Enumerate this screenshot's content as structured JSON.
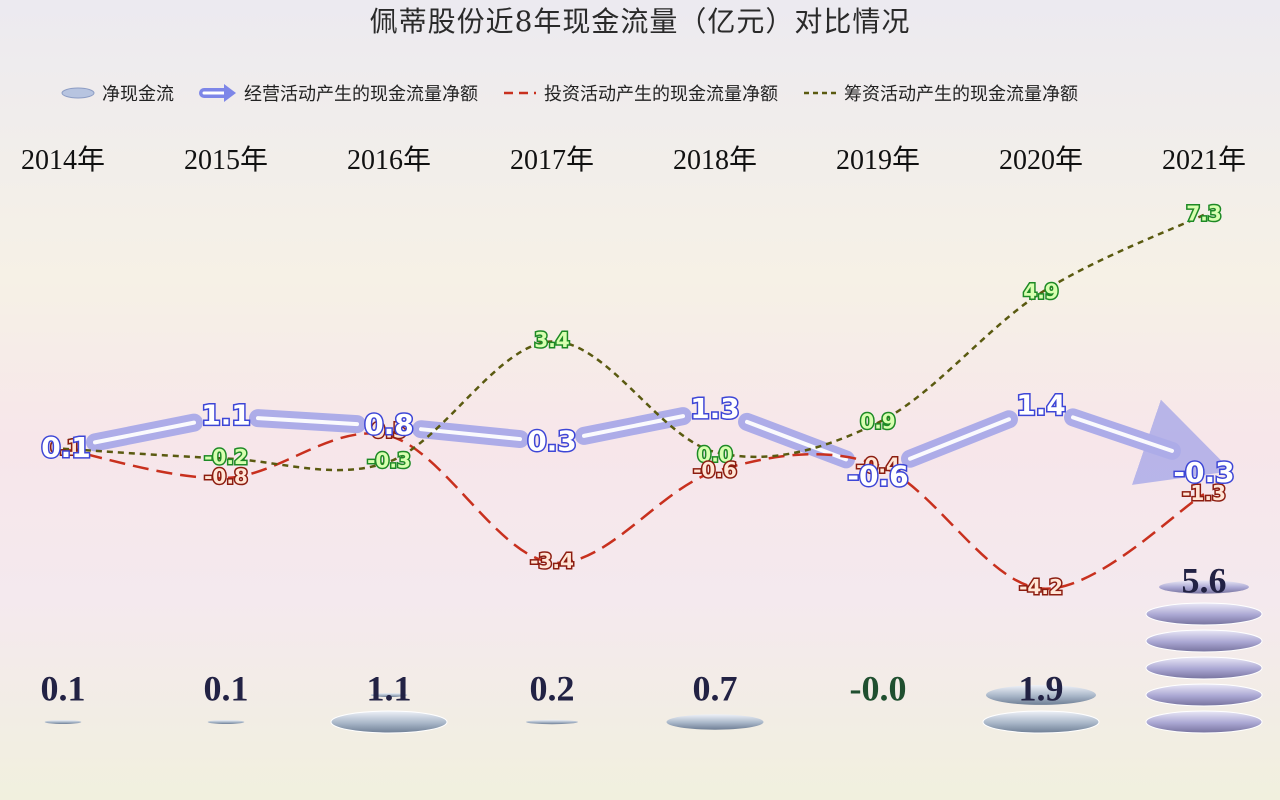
{
  "chart_data": {
    "type": "line",
    "title": "佩蒂股份近8年现金流量（亿元）对比情况",
    "categories": [
      "2014年",
      "2015年",
      "2016年",
      "2017年",
      "2018年",
      "2019年",
      "2020年",
      "2021年"
    ],
    "series": [
      {
        "name": "净现金流",
        "values": [
          0.1,
          0.1,
          1.1,
          0.2,
          0.7,
          -0.0,
          1.9,
          5.6
        ],
        "labels": [
          "0.1",
          "0.1",
          "1.1",
          "0.2",
          "0.7",
          "-0.0",
          "1.9",
          "5.6"
        ],
        "color": "#9fb0d2"
      },
      {
        "name": "经营活动产生的现金流量净额",
        "values": [
          0.1,
          1.1,
          0.8,
          0.3,
          1.3,
          -0.6,
          1.4,
          -0.3
        ],
        "labels": [
          "0.1",
          "1.1",
          "0.8",
          "0.3",
          "1.3",
          "-0.6",
          "1.4",
          "-0.3"
        ],
        "color": "#7d86e8"
      },
      {
        "name": "投资活动产生的现金流量净额",
        "values": [
          0.1,
          -0.8,
          0.5,
          -3.4,
          -0.6,
          -0.4,
          -4.2,
          -1.3
        ],
        "labels": [
          "0.1",
          "-0.8",
          "0.5",
          "-3.4",
          "-0.6",
          "-0.4",
          "-4.2",
          "-1.3"
        ],
        "color": "#c8301e"
      },
      {
        "name": "筹资活动产生的现金流量净额",
        "values": [
          0.1,
          -0.2,
          -0.3,
          3.4,
          0.0,
          0.9,
          4.9,
          7.3
        ],
        "labels": [
          "0.1",
          "-0.2",
          "-0.3",
          "3.4",
          "0.0",
          "0.9",
          "4.9",
          "7.3"
        ],
        "color": "#5a5a10"
      }
    ],
    "legend_position": "top",
    "grid": false
  }
}
